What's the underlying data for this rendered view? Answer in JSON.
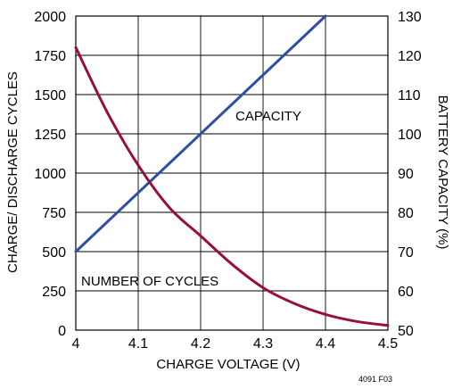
{
  "chart_data": {
    "type": "line",
    "xlabel": "CHARGE VOLTAGE (V)",
    "ylabel_left": "CHARGE/ DISCHARGE CYCLES",
    "ylabel_right": "BATTERY CAPACITY (%)",
    "xlim": [
      4.0,
      4.5
    ],
    "ylim_left": [
      0,
      2000
    ],
    "ylim_right": [
      50,
      130
    ],
    "x_ticks": [
      "4",
      "4.1",
      "4.2",
      "4.3",
      "4.4",
      "4.5"
    ],
    "y_left_ticks": [
      "0",
      "250",
      "500",
      "750",
      "1000",
      "1250",
      "1500",
      "1750",
      "2000"
    ],
    "y_right_ticks": [
      "50",
      "60",
      "70",
      "80",
      "90",
      "100",
      "110",
      "120",
      "130"
    ],
    "grid": true,
    "figure_id": "4091 F03",
    "colors": {
      "capacity": "#2d4fa3",
      "cycles": "#9a0f3a"
    },
    "series": [
      {
        "name": "CAPACITY",
        "axis": "right",
        "x": [
          4.0,
          4.4
        ],
        "y": [
          70,
          130
        ]
      },
      {
        "name": "NUMBER OF CYCLES",
        "axis": "left",
        "x": [
          4.0,
          4.05,
          4.1,
          4.15,
          4.2,
          4.25,
          4.3,
          4.35,
          4.4,
          4.45,
          4.5
        ],
        "y": [
          1800,
          1390,
          1050,
          780,
          600,
          420,
          270,
          170,
          100,
          55,
          30
        ]
      }
    ]
  }
}
